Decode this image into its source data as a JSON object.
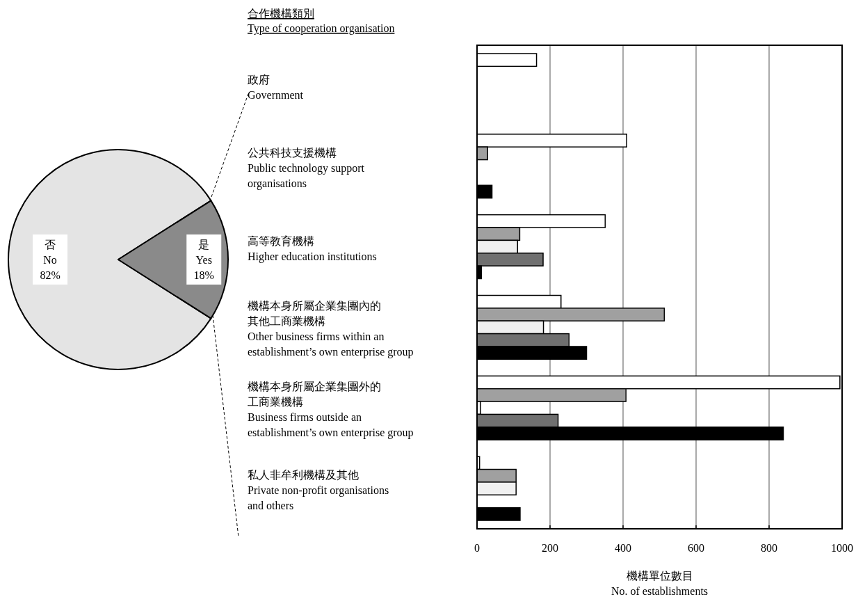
{
  "chart_data": [
    {
      "type": "pie",
      "categories": [
        "否\nNo",
        "是\nYes"
      ],
      "values": [
        82,
        18
      ],
      "value_labels": [
        "82%",
        "18%"
      ],
      "colors": [
        "#e4e4e4",
        "#8a8a8a"
      ]
    },
    {
      "type": "bar",
      "orientation": "horizontal",
      "ylabel": "合作機構類別\nType of cooperation organisation",
      "xlabel": "機構單位數目\nNo. of establishments",
      "categories": [
        "政府\nGovernment",
        "公共科技支援機構\nPublic technology support\norganisations",
        "高等教育機構\nHigher education institutions",
        "機構本身所屬企業集團內的其他工商業機構\nOther business firms within an\nestablishment’s own enterprise group",
        "機構本身所屬企業集團外的工商業機構\nBusiness firms outside an\nestablishment’s own enterprise group",
        "私人非牟利機構及其他\nPrivate non-profit organisations\nand others"
      ],
      "series": [
        {
          "color": "#ffffff",
          "values": [
            163,
            410,
            351,
            230,
            994,
            7
          ]
        },
        {
          "color": "#a0a0a0",
          "values": [
            0,
            29,
            117,
            513,
            408,
            107
          ]
        },
        {
          "color": "#f0f0f0",
          "values": [
            0,
            0,
            111,
            182,
            10,
            107
          ]
        },
        {
          "color": "#707070",
          "values": [
            null,
            null,
            181,
            252,
            222,
            0
          ]
        },
        {
          "color": "#000000",
          "values": [
            null,
            41,
            12,
            300,
            839,
            118
          ]
        }
      ],
      "xlim": [
        0,
        1000
      ],
      "xticks": [
        0,
        200,
        400,
        600,
        800,
        1000
      ],
      "grid": "x"
    }
  ]
}
